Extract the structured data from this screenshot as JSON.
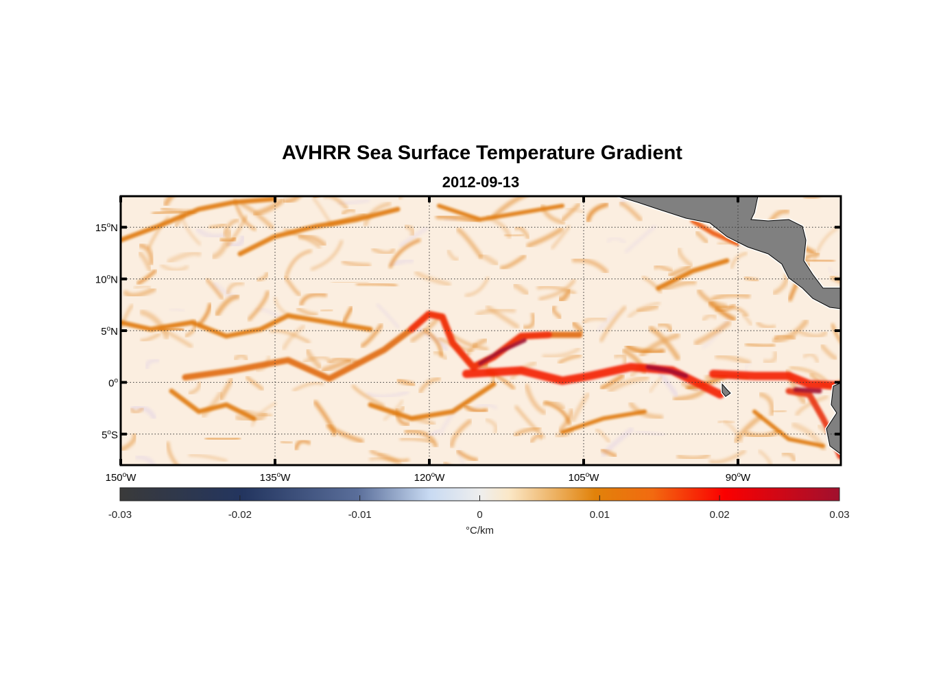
{
  "title": "AVHRR Sea Surface Temperature Gradient",
  "subtitle": "2012-09-13",
  "chart_data": {
    "type": "heatmap",
    "title": "AVHRR Sea Surface Temperature Gradient",
    "subtitle": "2012-09-13",
    "projection": "equirectangular",
    "lon_range": [
      -150,
      -80
    ],
    "lat_range": [
      -8,
      18
    ],
    "grid": true,
    "x_ticks": [
      {
        "value": -150,
        "deg": "150",
        "hemi": "W"
      },
      {
        "value": -135,
        "deg": "135",
        "hemi": "W"
      },
      {
        "value": -120,
        "deg": "120",
        "hemi": "W"
      },
      {
        "value": -105,
        "deg": "105",
        "hemi": "W"
      },
      {
        "value": -90,
        "deg": "90",
        "hemi": "W"
      }
    ],
    "y_ticks": [
      {
        "value": 15,
        "deg": "15",
        "hemi": "N"
      },
      {
        "value": 10,
        "deg": "10",
        "hemi": "N"
      },
      {
        "value": 5,
        "deg": "5",
        "hemi": "N"
      },
      {
        "value": 0,
        "deg": "0",
        "hemi": ""
      },
      {
        "value": -5,
        "deg": "5",
        "hemi": "S"
      }
    ],
    "colorbar": {
      "range": [
        -0.03,
        0.03
      ],
      "ticks": [
        "-0.03",
        "-0.02",
        "-0.01",
        "0",
        "0.01",
        "0.02",
        "0.03"
      ],
      "tick_values": [
        -0.03,
        -0.02,
        -0.01,
        0,
        0.01,
        0.02,
        0.03
      ],
      "label": "°C/km",
      "colors": [
        "#3a3a3a",
        "#23355f",
        "#5a6e9a",
        "#c8daf2",
        "#eeeeee",
        "#fbe8c8",
        "#e1820a",
        "#f26a10",
        "#fb0000",
        "#a0102e"
      ],
      "placement": "bottom"
    },
    "land_color": "#808080",
    "ocean_background": "#fbeee0"
  }
}
